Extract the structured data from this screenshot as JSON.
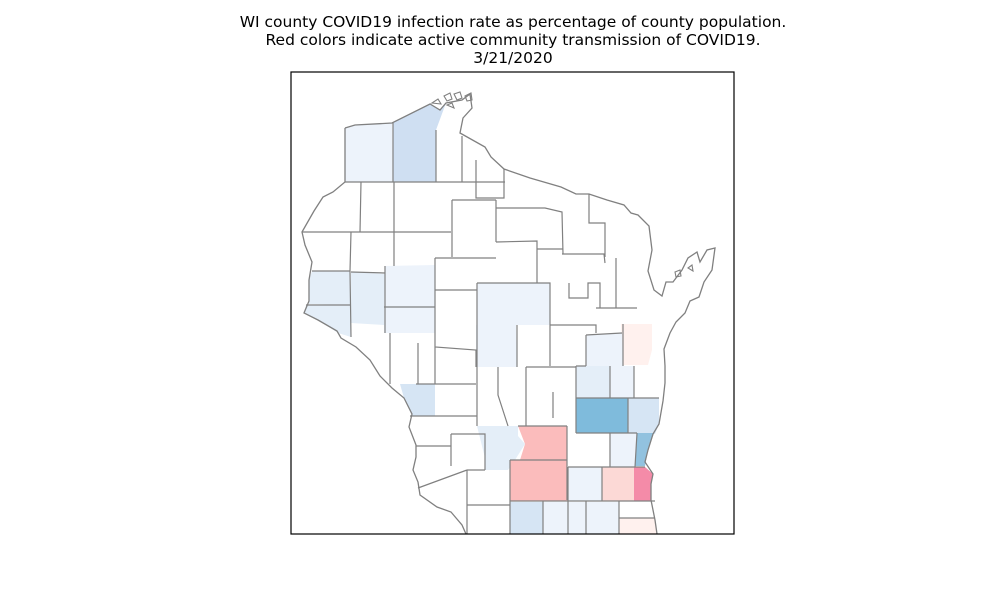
{
  "title": {
    "line1": "WI county COVID19 infection rate as percentage of county population.",
    "line2": "Red colors indicate active community transmission of COVID19.",
    "line3": "3/21/2020"
  },
  "colors": {
    "frame": "#000000",
    "border": "#808080",
    "no_cases": "#ffffff",
    "blue_very_light": "#edf3fb",
    "blue_light": "#e4eef8",
    "blue_pale": "#d6e5f4",
    "blue_medium": "#cfdff2",
    "blue_strong": "#7fbbdc",
    "blue_steel": "#92c2df",
    "red_very_light": "#fff1ee",
    "red_light": "#fcd9d6",
    "red_medium": "#fbbcbc",
    "red_strong": "#f48ba8"
  },
  "counties": [
    {
      "name": "Douglas",
      "fill": "blue_very_light"
    },
    {
      "name": "Bayfield",
      "fill": "blue_medium"
    },
    {
      "name": "Polk",
      "fill": "blue_light"
    },
    {
      "name": "St. Croix",
      "fill": "blue_light"
    },
    {
      "name": "Pierce",
      "fill": "blue_light"
    },
    {
      "name": "Dunn",
      "fill": "blue_very_light"
    },
    {
      "name": "Pepin",
      "fill": "blue_very_light"
    },
    {
      "name": "Marathon",
      "fill": "blue_very_light"
    },
    {
      "name": "Wood",
      "fill": "blue_very_light"
    },
    {
      "name": "La Crosse",
      "fill": "blue_pale"
    },
    {
      "name": "Door",
      "fill": "red_very_light"
    },
    {
      "name": "Outagamie",
      "fill": "blue_very_light"
    },
    {
      "name": "Fond du Lac",
      "fill": "blue_light"
    },
    {
      "name": "Calumet",
      "fill": "blue_very_light"
    },
    {
      "name": "Dodge",
      "fill": "blue_strong"
    },
    {
      "name": "Sheboygan",
      "fill": "blue_pale"
    },
    {
      "name": "Sauk",
      "fill": "blue_light"
    },
    {
      "name": "Columbia",
      "fill": "red_medium"
    },
    {
      "name": "Ozaukee",
      "fill": "blue_steel"
    },
    {
      "name": "Washington",
      "fill": "blue_very_light"
    },
    {
      "name": "Dane",
      "fill": "red_medium"
    },
    {
      "name": "Jefferson",
      "fill": "blue_very_light"
    },
    {
      "name": "Waukesha",
      "fill": "red_light"
    },
    {
      "name": "Milwaukee",
      "fill": "red_strong"
    },
    {
      "name": "Green",
      "fill": "blue_pale"
    },
    {
      "name": "Rock",
      "fill": "blue_very_light"
    },
    {
      "name": "Walworth",
      "fill": "blue_very_light"
    },
    {
      "name": "Kenosha",
      "fill": "red_very_light"
    }
  ]
}
